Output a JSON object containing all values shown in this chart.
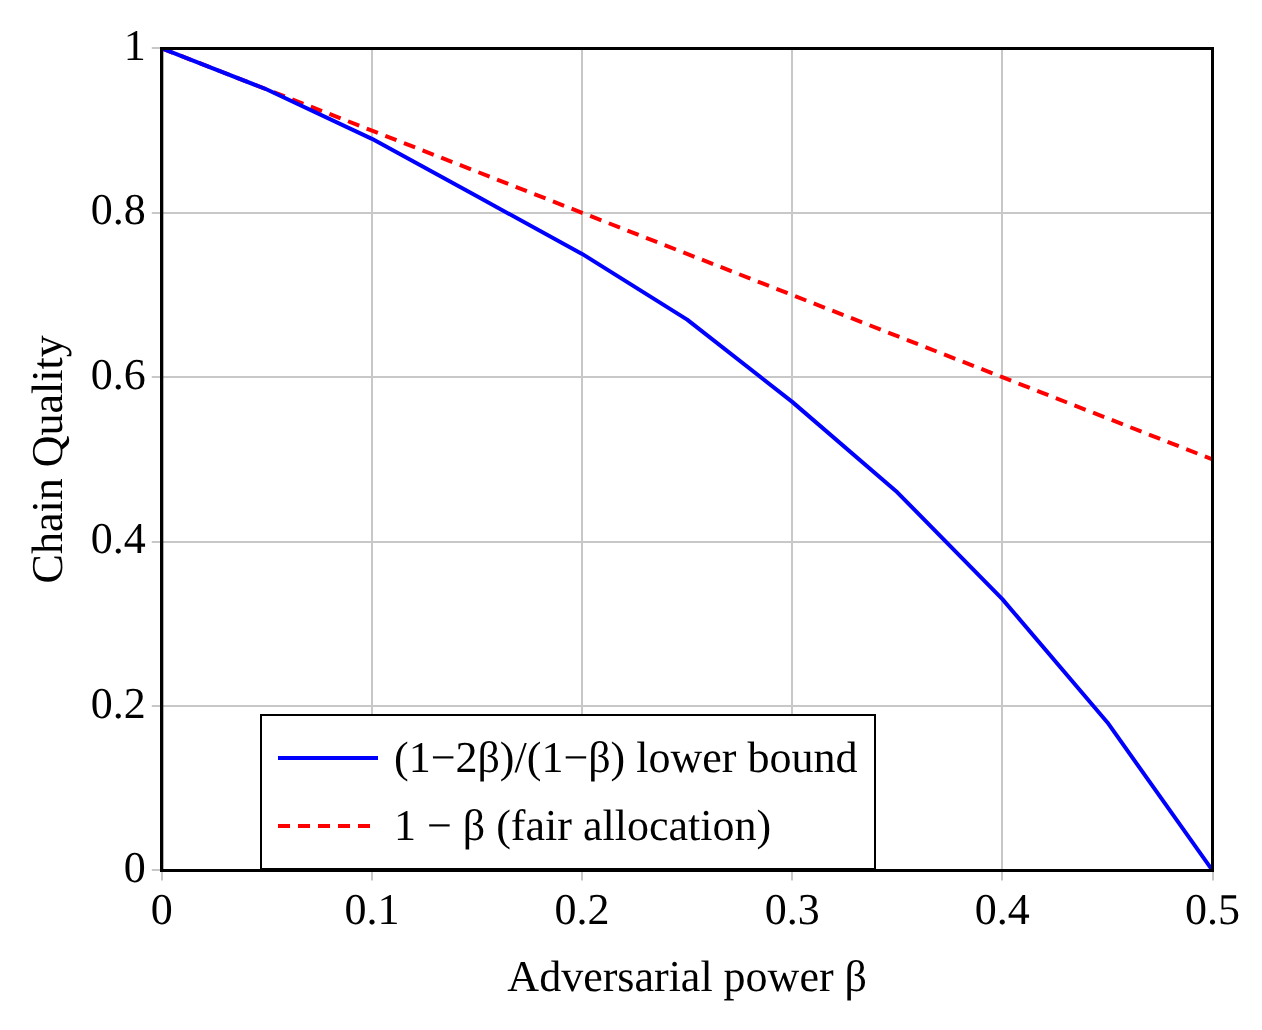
{
  "chart_data": {
    "type": "line",
    "xlabel": "Adversarial power β",
    "ylabel": "Chain Quality",
    "xlim": [
      0,
      0.5
    ],
    "ylim": [
      0,
      1
    ],
    "xticks": [
      0,
      0.1,
      0.2,
      0.3,
      0.4,
      0.5
    ],
    "yticks": [
      0,
      0.2,
      0.4,
      0.6,
      0.8,
      1
    ],
    "grid": true,
    "legend": "bottom left",
    "marker": "none",
    "series": [
      {
        "name": "(1−2β)/(1−β) lower bound",
        "color": "#0000ff",
        "line_style": "solid",
        "x": [
          0,
          0.05,
          0.1,
          0.15,
          0.2,
          0.25,
          0.3,
          0.35,
          0.4,
          0.45,
          0.5
        ],
        "values": [
          1,
          0.95,
          0.89,
          0.82,
          0.75,
          0.67,
          0.57,
          0.46,
          0.33,
          0.18,
          0
        ]
      },
      {
        "name": "1 − β (fair allocation)",
        "color": "#ff0000",
        "line_style": "dashed",
        "x": [
          0,
          0.1,
          0.2,
          0.3,
          0.4,
          0.5
        ],
        "values": [
          1,
          0.9,
          0.8,
          0.7,
          0.6,
          0.5
        ]
      }
    ]
  }
}
